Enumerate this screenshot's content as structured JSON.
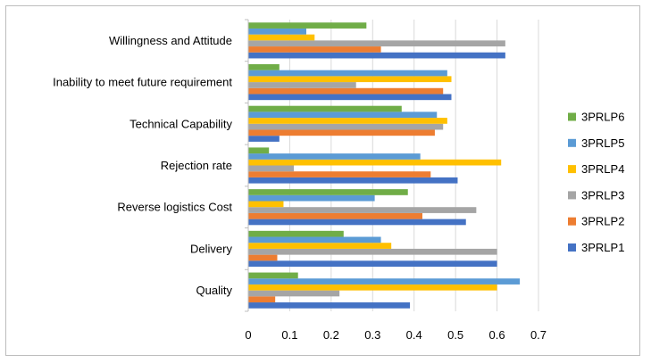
{
  "chart_data": {
    "type": "bar",
    "orientation": "horizontal",
    "categories": [
      "Quality",
      "Delivery",
      "Reverse logistics Cost",
      "Rejection rate",
      "Technical Capability",
      "Inability to meet future requirement",
      "Willingness and Attitude"
    ],
    "series": [
      {
        "name": "3PRLP1",
        "color": "#4472c4",
        "values": [
          0.39,
          0.6,
          0.525,
          0.505,
          0.075,
          0.49,
          0.62
        ]
      },
      {
        "name": "3PRLP2",
        "color": "#ed7d31",
        "values": [
          0.065,
          0.07,
          0.42,
          0.44,
          0.45,
          0.47,
          0.32
        ]
      },
      {
        "name": "3PRLP3",
        "color": "#a5a5a5",
        "values": [
          0.22,
          0.6,
          0.55,
          0.11,
          0.47,
          0.26,
          0.62
        ]
      },
      {
        "name": "3PRLP4",
        "color": "#ffc000",
        "values": [
          0.6,
          0.345,
          0.085,
          0.61,
          0.48,
          0.49,
          0.16
        ]
      },
      {
        "name": "3PRLP5",
        "color": "#5b9bd5",
        "values": [
          0.655,
          0.32,
          0.305,
          0.415,
          0.455,
          0.48,
          0.14
        ]
      },
      {
        "name": "3PRLP6",
        "color": "#70ad47",
        "values": [
          0.12,
          0.23,
          0.385,
          0.05,
          0.37,
          0.075,
          0.285
        ]
      }
    ],
    "xlim": [
      0,
      0.7
    ],
    "xticks": [
      "0",
      "0.1",
      "0.2",
      "0.3",
      "0.4",
      "0.5",
      "0.6",
      "0.7"
    ],
    "grid": true,
    "legend_position": "right",
    "legend_order": [
      "3PRLP6",
      "3PRLP5",
      "3PRLP4",
      "3PRLP3",
      "3PRLP2",
      "3PRLP1"
    ]
  }
}
